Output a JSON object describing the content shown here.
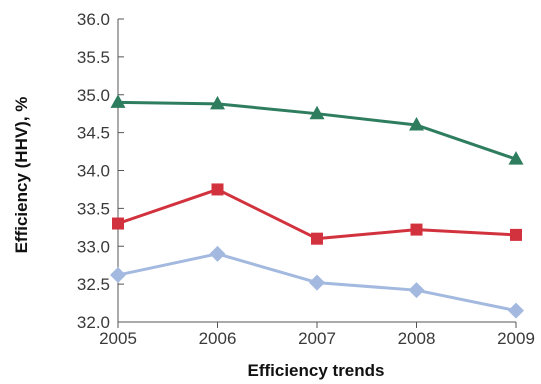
{
  "chart_data": {
    "type": "line",
    "title": "",
    "xlabel": "Efficiency trends",
    "ylabel": "Efficiency (HHV), %",
    "x": [
      2005,
      2006,
      2007,
      2008,
      2009
    ],
    "x_tick_labels": [
      "2005",
      "2006",
      "2007",
      "2008",
      "2009"
    ],
    "ylim": [
      32.0,
      36.0
    ],
    "y_ticks": [
      32.0,
      32.5,
      33.0,
      33.5,
      34.0,
      34.5,
      35.0,
      35.5,
      36.0
    ],
    "y_tick_labels": [
      "32.0",
      "32.5",
      "33.0",
      "33.5",
      "34.0",
      "34.5",
      "35.0",
      "35.5",
      "36.0"
    ],
    "grid": false,
    "legend": "none",
    "series": [
      {
        "color": "#2e7d5e",
        "marker": "triangle",
        "values": [
          34.9,
          34.88,
          34.75,
          34.6,
          34.15
        ]
      },
      {
        "color": "#d2323e",
        "marker": "square",
        "values": [
          33.3,
          33.75,
          33.1,
          33.22,
          33.15
        ]
      },
      {
        "color": "#a3b9df",
        "marker": "diamond",
        "values": [
          32.62,
          32.9,
          32.52,
          32.42,
          32.15
        ]
      }
    ]
  }
}
